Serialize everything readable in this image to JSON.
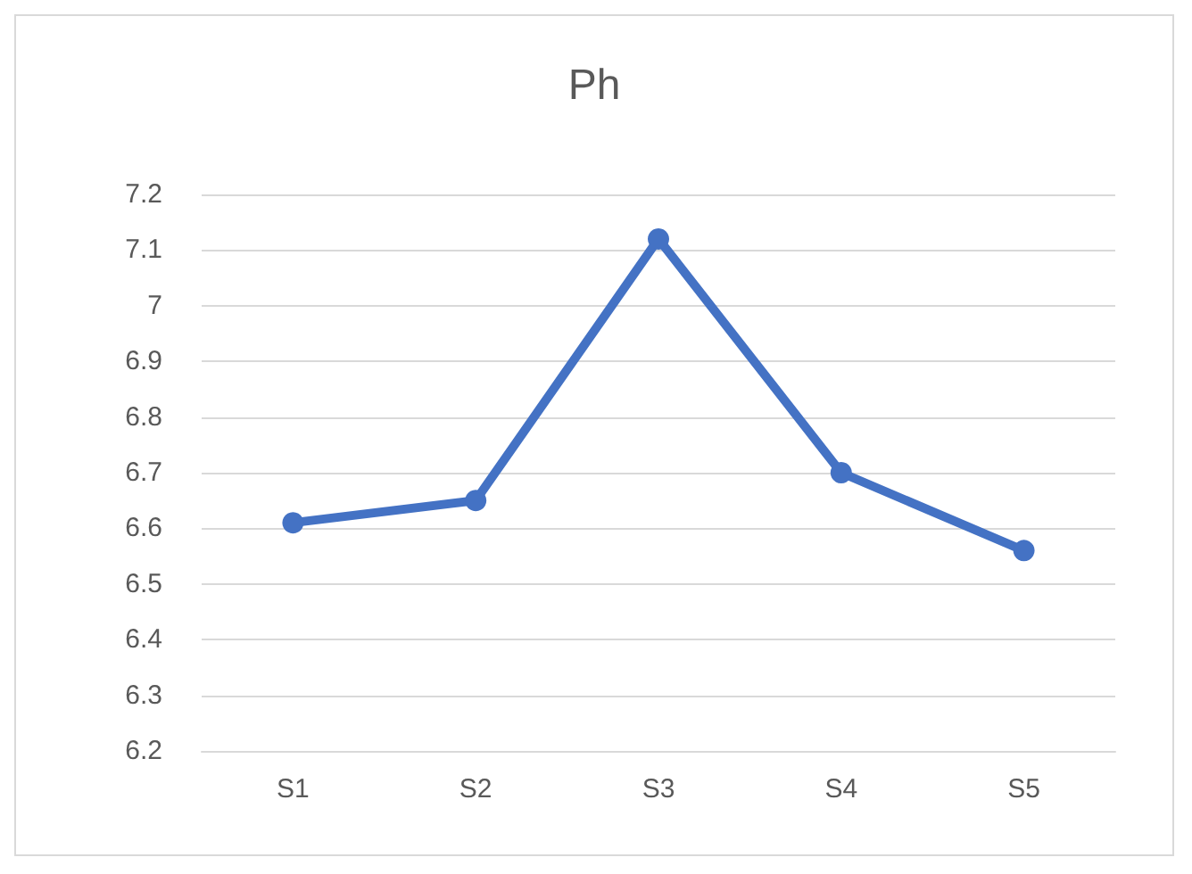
{
  "chart_data": {
    "type": "line",
    "title": "Ph",
    "categories": [
      "S1",
      "S2",
      "S3",
      "S4",
      "S5"
    ],
    "series": [
      {
        "color": "#4472c4",
        "values": [
          6.61,
          6.65,
          7.12,
          6.7,
          6.56
        ]
      }
    ],
    "ylim": [
      6.2,
      7.2
    ],
    "yticks": [
      6.2,
      6.3,
      6.4,
      6.5,
      6.6,
      6.7,
      6.8,
      6.9,
      7,
      7.1,
      7.2
    ],
    "grid": "y",
    "marker": "circle",
    "line_style": "solid"
  }
}
